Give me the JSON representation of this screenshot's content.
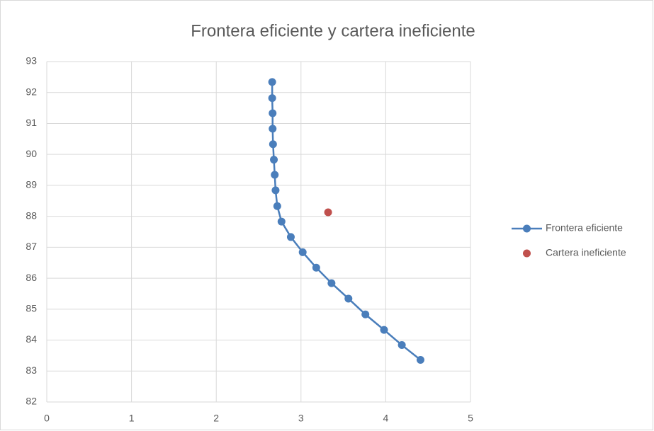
{
  "chart_data": {
    "type": "scatter",
    "title": "Frontera eficiente y cartera ineficiente",
    "xlim": [
      0,
      5
    ],
    "xticks": [
      0,
      1,
      2,
      3,
      4,
      5
    ],
    "ylim": [
      82,
      93
    ],
    "yticks": [
      82,
      83,
      84,
      85,
      86,
      87,
      88,
      89,
      90,
      91,
      92,
      93
    ],
    "grid": true,
    "legend": "right",
    "series": [
      {
        "name": "Frontera eficiente",
        "color": "#4a7ebb",
        "line": true,
        "x": [
          2.66,
          2.66,
          2.665,
          2.665,
          2.67,
          2.68,
          2.69,
          2.7,
          2.72,
          2.77,
          2.88,
          3.02,
          3.18,
          3.36,
          3.56,
          3.76,
          3.98,
          4.19,
          4.41
        ],
        "values": [
          92.34,
          91.82,
          91.33,
          90.83,
          90.33,
          89.83,
          89.34,
          88.84,
          88.33,
          87.83,
          87.33,
          86.84,
          86.34,
          85.84,
          85.34,
          84.83,
          84.33,
          83.84,
          83.36
        ]
      },
      {
        "name": "Cartera ineficiente",
        "color": "#c0504d",
        "line": false,
        "x": [
          3.32
        ],
        "values": [
          88.13
        ]
      }
    ]
  }
}
